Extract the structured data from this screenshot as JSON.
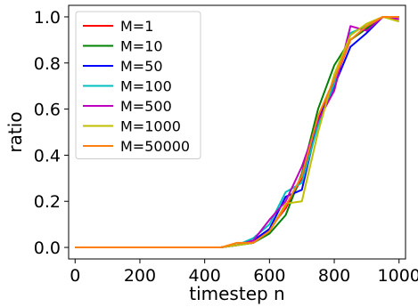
{
  "chart_data": {
    "type": "line",
    "xlabel": "timestep n",
    "ylabel": "ratio",
    "xlim": [
      -20,
      1020
    ],
    "ylim": [
      -0.05,
      1.05
    ],
    "xticks": [
      0,
      200,
      400,
      600,
      800,
      1000
    ],
    "yticks": [
      0.0,
      0.2,
      0.4,
      0.6,
      0.8,
      1.0
    ],
    "xtick_labels": [
      "0",
      "200",
      "400",
      "600",
      "800",
      "1000"
    ],
    "ytick_labels": [
      "0.0",
      "0.2",
      "0.4",
      "0.6",
      "0.8",
      "1.0"
    ],
    "grid": false,
    "legend_position": "top-left",
    "x": [
      0,
      50,
      100,
      150,
      200,
      250,
      300,
      350,
      400,
      450,
      500,
      550,
      600,
      650,
      700,
      750,
      800,
      850,
      900,
      950,
      1000
    ],
    "series": [
      {
        "name": "M=1",
        "color": "#ff0000",
        "values": [
          0,
          0,
          0,
          0,
          0,
          0,
          0,
          0,
          0,
          0,
          0.01,
          0.02,
          0.08,
          0.17,
          0.3,
          0.55,
          0.72,
          0.9,
          0.95,
          1.0,
          0.99
        ]
      },
      {
        "name": "M=10",
        "color": "#008000",
        "values": [
          0,
          0,
          0,
          0,
          0,
          0,
          0,
          0,
          0,
          0,
          0.01,
          0.02,
          0.06,
          0.14,
          0.32,
          0.6,
          0.79,
          0.9,
          0.95,
          1.0,
          1.0
        ]
      },
      {
        "name": "M=50",
        "color": "#0000ff",
        "values": [
          0,
          0,
          0,
          0,
          0,
          0,
          0,
          0,
          0,
          0,
          0.01,
          0.03,
          0.08,
          0.22,
          0.25,
          0.55,
          0.7,
          0.87,
          0.93,
          1.0,
          1.0
        ]
      },
      {
        "name": "M=100",
        "color": "#00bfbf",
        "values": [
          0,
          0,
          0,
          0,
          0,
          0,
          0,
          0,
          0,
          0,
          0.01,
          0.04,
          0.1,
          0.24,
          0.28,
          0.53,
          0.71,
          0.93,
          0.96,
          1.0,
          1.0
        ]
      },
      {
        "name": "M=500",
        "color": "#bf00bf",
        "values": [
          0,
          0,
          0,
          0,
          0,
          0,
          0,
          0,
          0,
          0,
          0.01,
          0.03,
          0.12,
          0.2,
          0.35,
          0.55,
          0.68,
          0.96,
          0.94,
          1.0,
          0.99
        ]
      },
      {
        "name": "M=1000",
        "color": "#bfbf00",
        "values": [
          0,
          0,
          0,
          0,
          0,
          0,
          0,
          0,
          0,
          0,
          0.01,
          0.02,
          0.07,
          0.19,
          0.2,
          0.5,
          0.75,
          0.92,
          0.97,
          1.0,
          0.98
        ]
      },
      {
        "name": "M=50000",
        "color": "#ff7f0e",
        "values": [
          0,
          0,
          0,
          0,
          0,
          0,
          0,
          0,
          0,
          0,
          0.02,
          0.02,
          0.07,
          0.18,
          0.31,
          0.57,
          0.73,
          0.9,
          0.96,
          1.0,
          1.0
        ]
      }
    ]
  }
}
